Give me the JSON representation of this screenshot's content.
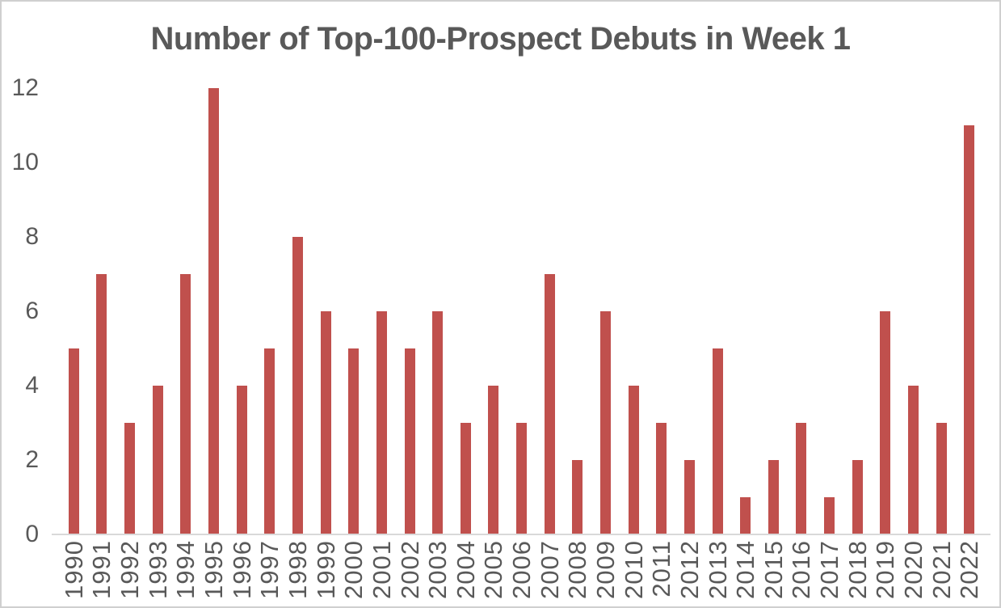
{
  "title": "Number of Top-100-Prospect Debuts in Week 1",
  "chart_data": {
    "type": "bar",
    "title": "Number of Top-100-Prospect Debuts in Week 1",
    "categories": [
      "1990",
      "1991",
      "1992",
      "1993",
      "1994",
      "1995",
      "1996",
      "1997",
      "1998",
      "1999",
      "2000",
      "2001",
      "2002",
      "2003",
      "2004",
      "2005",
      "2006",
      "2007",
      "2008",
      "2009",
      "2010",
      "2011",
      "2012",
      "2013",
      "2014",
      "2015",
      "2016",
      "2017",
      "2018",
      "2019",
      "2020",
      "2021",
      "2022"
    ],
    "values": [
      5,
      7,
      3,
      4,
      7,
      12,
      4,
      5,
      8,
      6,
      5,
      6,
      5,
      6,
      3,
      4,
      3,
      7,
      2,
      6,
      4,
      3,
      2,
      5,
      1,
      2,
      3,
      1,
      2,
      6,
      4,
      3,
      11
    ],
    "xlabel": "",
    "ylabel": "",
    "ylim": [
      0,
      12
    ],
    "yticks": [
      0,
      2,
      4,
      6,
      8,
      10,
      12
    ],
    "grid": false,
    "legend_position": "none",
    "x_tick_rotation_degrees": 90
  },
  "colors": {
    "bar": "#C0504D",
    "text": "#595959",
    "axis_line": "#D9D9D9",
    "frame_border": "#CFCFCF",
    "background": "#FFFFFF"
  }
}
